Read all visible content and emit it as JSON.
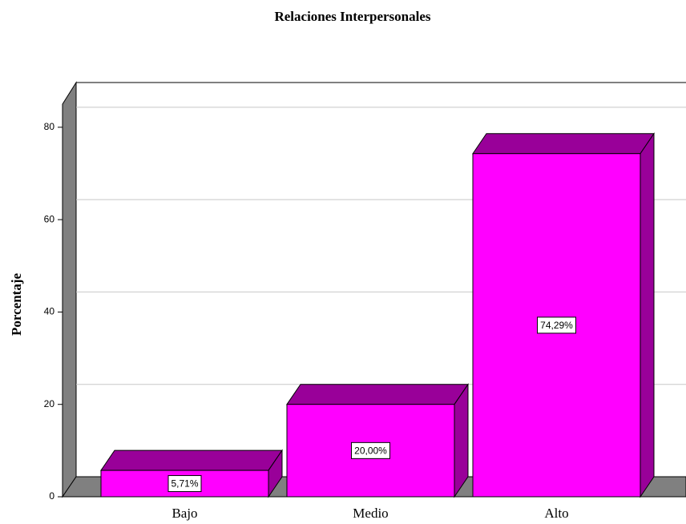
{
  "chart_data": {
    "type": "bar3d",
    "title": "Relaciones Interpersonales",
    "y_label": "Porcentaje",
    "categories": [
      "Bajo",
      "Medio",
      "Alto"
    ],
    "values": [
      5.71,
      20.0,
      74.29
    ],
    "value_labels": [
      "5,71%",
      "20,00%",
      "74,29%"
    ],
    "color": "#ff00ff",
    "ylim": [
      0,
      85
    ],
    "yticks": [
      0,
      20,
      40,
      60,
      80
    ],
    "grid": true
  }
}
